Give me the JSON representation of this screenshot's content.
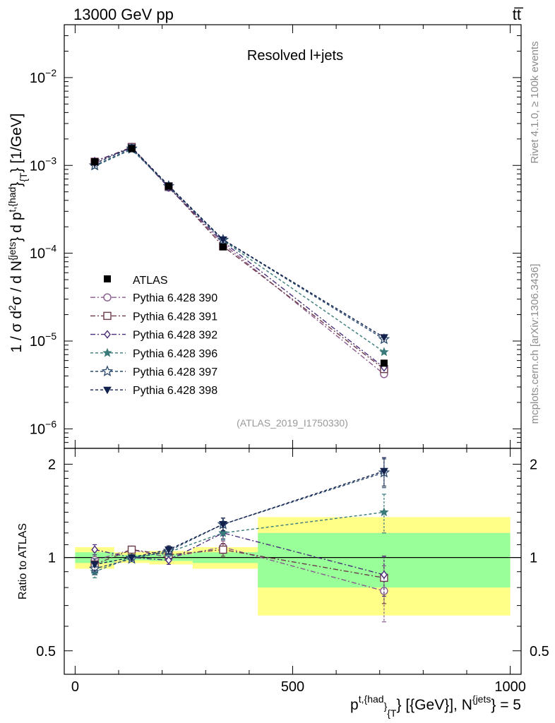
{
  "header": {
    "left": "13000 GeV pp",
    "right": "tt̅"
  },
  "side_labels": {
    "rivet": "Rivet 4.1.0, ≥ 100k events",
    "mcplots": "mcplots.cern.ch [arXiv:1306.3436]"
  },
  "chart_data": {
    "type": "line",
    "title": "Resolved l+jets",
    "analysis_id": "(ATLAS_2019_I1750330)",
    "x": [
      45,
      130,
      215,
      340,
      710
    ],
    "xlim": [
      -25,
      1025
    ],
    "xticks": [
      0,
      500,
      1000
    ],
    "xtick_labels": [
      "0",
      "500",
      "1000"
    ],
    "xlabel": {
      "base": "p",
      "sup": "t,{had",
      "sub": "}",
      "sub2": "{T",
      "rest": "} [{GeV}], N",
      "sup2": "{jets",
      "end": "} = 5"
    },
    "ylabel_main": {
      "p1": "1 / σ d",
      "s1": "2",
      "p2": "σ / d N",
      "s2": "{jets",
      "p3": "} d p",
      "s3": "t,{had",
      "p4": "}",
      "b4": "{T",
      "p5": "} [1/GeV]"
    },
    "ylabel_ratio": "Ratio to ATLAS",
    "ylim_main": [
      6e-07,
      0.04
    ],
    "ylim_ratio": [
      0.42,
      2.25
    ],
    "yticks_main": [
      {
        "v": 1e-06,
        "base": "10",
        "exp": "−6"
      },
      {
        "v": 1e-05,
        "base": "10",
        "exp": "−5"
      },
      {
        "v": 0.0001,
        "base": "10",
        "exp": "−4"
      },
      {
        "v": 0.001,
        "base": "10",
        "exp": "−3"
      },
      {
        "v": 0.01,
        "base": "10",
        "exp": "−2"
      }
    ],
    "yticks_ratio": [
      {
        "v": 0.5,
        "label": "0.5"
      },
      {
        "v": 1,
        "label": "1"
      },
      {
        "v": 2,
        "label": "2"
      }
    ],
    "data": {
      "name": "ATLAS",
      "values": [
        0.0011,
        0.00155,
        0.00058,
        0.000118,
        5.6e-06
      ],
      "bins": [
        {
          "lo": 0,
          "hi": 90,
          "stat": 0.04,
          "tot": 0.08
        },
        {
          "lo": 90,
          "hi": 170,
          "stat": 0.02,
          "tot": 0.04
        },
        {
          "lo": 170,
          "hi": 270,
          "stat": 0.025,
          "tot": 0.05
        },
        {
          "lo": 270,
          "hi": 420,
          "stat": 0.04,
          "tot": 0.08
        },
        {
          "lo": 420,
          "hi": 1000,
          "stat": 0.2,
          "tot": 0.35
        }
      ]
    },
    "series": [
      {
        "name": "Pythia 6.428 390",
        "color": "#8a5a8c",
        "dash": "7,3,2,3",
        "marker": "circle-open",
        "values": [
          0.0011,
          0.0016,
          0.00056,
          0.000128,
          4.2e-06
        ],
        "ratio": [
          0.98,
          1.06,
          1.0,
          1.08,
          0.78
        ],
        "ratio_err": [
          0.04,
          0.02,
          0.03,
          0.05,
          0.16
        ]
      },
      {
        "name": "Pythia 6.428 391",
        "color": "#6b3a4a",
        "dash": "7,3,2,3",
        "marker": "square-open",
        "values": [
          0.0011,
          0.00162,
          0.00057,
          0.00012,
          4.8e-06
        ],
        "ratio": [
          0.95,
          1.06,
          1.02,
          1.06,
          0.86
        ],
        "ratio_err": [
          0.04,
          0.02,
          0.03,
          0.05,
          0.15
        ]
      },
      {
        "name": "Pythia 6.428 392",
        "color": "#4a2d7a",
        "dash": "7,3,2,3",
        "marker": "diamond-open",
        "values": [
          0.00112,
          0.00158,
          0.00056,
          0.000135,
          5e-06
        ],
        "ratio": [
          1.06,
          1.0,
          0.98,
          1.2,
          0.88
        ],
        "ratio_err": [
          0.04,
          0.02,
          0.03,
          0.05,
          0.13
        ]
      },
      {
        "name": "Pythia 6.428 396",
        "color": "#3a7a7a",
        "dash": "4,3",
        "marker": "star-filled",
        "values": [
          0.00098,
          0.00152,
          0.00058,
          0.00014,
          7.5e-06
        ],
        "ratio": [
          0.9,
          1.0,
          1.04,
          1.2,
          1.4
        ],
        "ratio_err": [
          0.04,
          0.02,
          0.03,
          0.06,
          0.2
        ]
      },
      {
        "name": "Pythia 6.428 397",
        "color": "#2a4a6e",
        "dash": "4,3",
        "marker": "star-open",
        "values": [
          0.001,
          0.00155,
          0.00058,
          0.000142,
          1.05e-05
        ],
        "ratio": [
          0.92,
          0.99,
          1.05,
          1.28,
          1.88
        ],
        "ratio_err": [
          0.04,
          0.02,
          0.03,
          0.06,
          0.2
        ]
      },
      {
        "name": "Pythia 6.428 398",
        "color": "#14224e",
        "dash": "4,3",
        "marker": "triangle-down-filled",
        "values": [
          0.00105,
          0.0016,
          0.00059,
          0.000143,
          1.1e-05
        ],
        "ratio": [
          0.95,
          1.0,
          1.06,
          1.28,
          1.9
        ],
        "ratio_err": [
          0.04,
          0.02,
          0.03,
          0.06,
          0.2
        ]
      }
    ]
  }
}
